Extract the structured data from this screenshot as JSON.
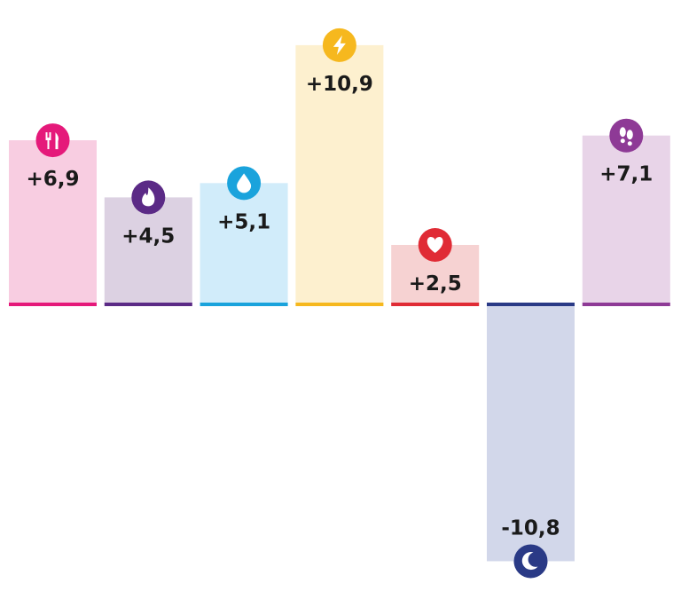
{
  "chart_data": {
    "type": "bar",
    "title": "",
    "xlabel": "",
    "ylabel": "",
    "ylim": [
      -11,
      11
    ],
    "grid": false,
    "legend": "none",
    "categories": [
      "food",
      "fire",
      "water",
      "energy",
      "heart",
      "sleep",
      "steps"
    ],
    "values": [
      6.9,
      4.5,
      5.1,
      10.9,
      2.5,
      -10.8,
      7.1
    ],
    "labels": [
      "+6,9",
      "+4,5",
      "+5,1",
      "+10,9",
      "+2,5",
      "-10,8",
      "+7,1"
    ],
    "icons": [
      "fork-knife-icon",
      "flame-icon",
      "water-drop-icon",
      "lightning-icon",
      "heart-icon",
      "moon-icon",
      "footprints-icon"
    ],
    "colors": {
      "accent": [
        "#E5197A",
        "#5B2A86",
        "#1AA3DC",
        "#F6B81E",
        "#E02B35",
        "#2A3A86",
        "#8E3A96"
      ],
      "fill": [
        "#F8CDE1",
        "#DCD1E2",
        "#D1ECFA",
        "#FDF0CF",
        "#F6D2D2",
        "#D2D7EA",
        "#E8D4E8"
      ]
    }
  }
}
